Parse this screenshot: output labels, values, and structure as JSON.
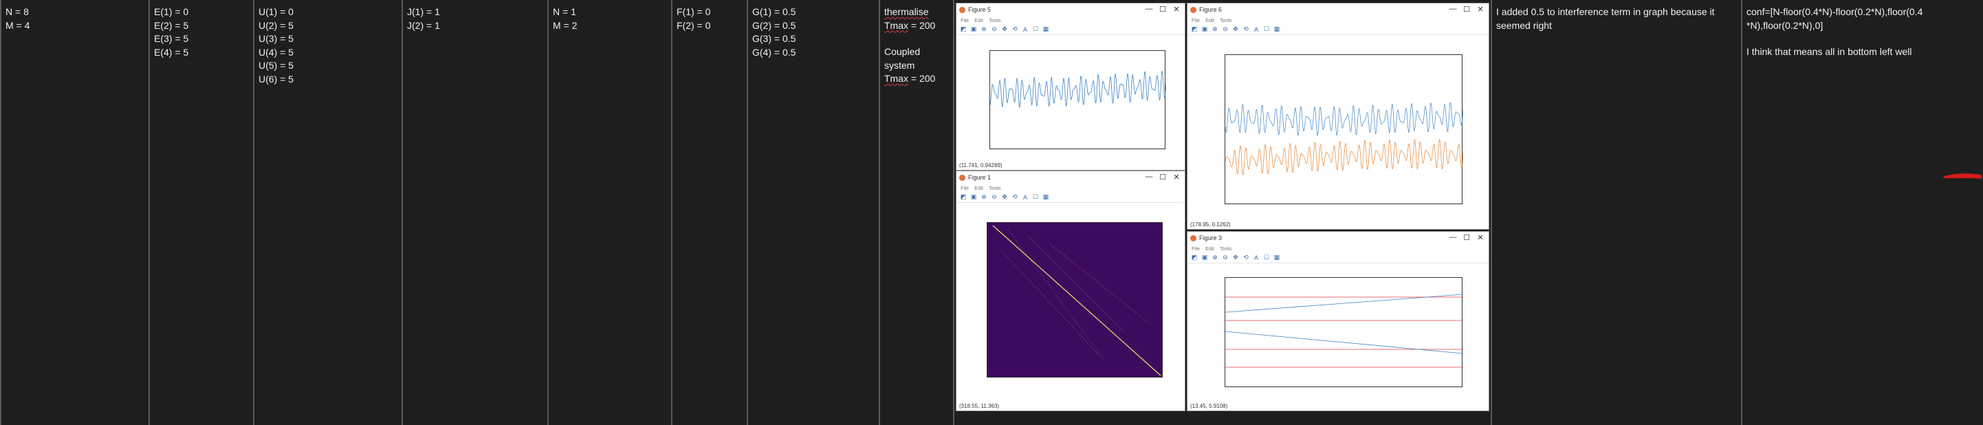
{
  "columns": [
    {
      "lines": [
        "N = 8",
        "M = 4"
      ]
    },
    {
      "lines": [
        "E(1) = 0",
        "E(2) = 5",
        "E(3) = 5",
        "E(4) = 5"
      ]
    },
    {
      "lines": [
        "U(1) = 0",
        "U(2) = 5",
        "U(3) = 5",
        "U(4) = 5",
        "U(5) = 5",
        "U(6) = 5"
      ]
    },
    {
      "lines": [
        "J(1) = 1",
        "J(2) = 1"
      ]
    },
    {
      "lines": [
        "N = 1",
        "M = 2"
      ]
    },
    {
      "lines": [
        "F(1) = 0",
        "F(2) = 0"
      ]
    },
    {
      "lines": [
        "G(1) = 0.5",
        "G(2) = 0.5",
        "G(3) = 0.5",
        "G(4) = 0.5"
      ]
    }
  ],
  "notes_col": {
    "thermalise": "thermalise",
    "tmax1_word": "Tmax",
    "tmax1_rest": " = 200",
    "coupled_1": "Coupled",
    "coupled_2": "system",
    "tmax2_word": "Tmax",
    "tmax2_rest": " = 200"
  },
  "comment_col": {
    "text": "I added 0.5 to interference term in graph because it seemed right"
  },
  "conf_col": {
    "conf_line1": "conf=[N-floor(0.4*N)-floor(0.2*N),floor(0.4",
    "conf_line2": "*N),floor(0.2*N),0]",
    "conf_note": "I think that means all in bottom left well"
  },
  "figures": {
    "menu": {
      "file": "File",
      "edit": "Edit",
      "tools": "Tools"
    },
    "controls": {
      "minimize": "—",
      "maximize": "☐",
      "close": "✕"
    },
    "fig5": {
      "title": "Figure 5",
      "status": "(11.741, 0.94289)"
    },
    "fig6": {
      "title": "Figure 6",
      "status": "(178.95, 0.1262)"
    },
    "fig1": {
      "title": "Figure 1",
      "status": "(318.55, 11.363)"
    },
    "fig3": {
      "title": "Figure 3",
      "status": "(13.45, 5.9108)"
    }
  },
  "colors": {
    "blue": "#3b82c4",
    "orange": "#e8822d",
    "purple_bg": "#3d0b5e",
    "red": "#e23b3b",
    "yellow": "#f0e06b"
  }
}
